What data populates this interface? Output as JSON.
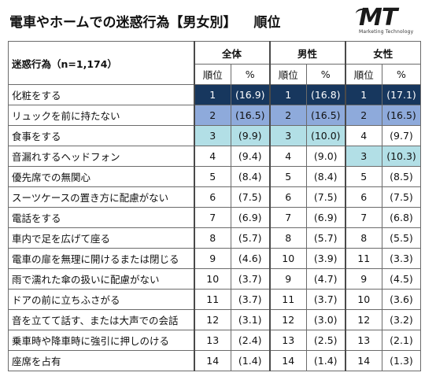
{
  "title": {
    "main": "電車やホームでの迷惑行為【男女別】",
    "rank": "順位"
  },
  "logo": {
    "text": "MT",
    "subtitle": "Marketing Technology"
  },
  "colors": {
    "rank1": "#17375e",
    "rank2": "#8eaadb",
    "rank3": "#b2dfe6",
    "border": "#6b6b6b"
  },
  "table": {
    "corner": "迷惑行為（n=1,174）",
    "groups": [
      "全体",
      "男性",
      "女性"
    ],
    "sub_rank": "順位",
    "sub_pct": "%",
    "rows": [
      {
        "label": "化粧をする",
        "total": [
          "1",
          "(16.9)"
        ],
        "male": [
          "1",
          "(16.8)"
        ],
        "female": [
          "1",
          "(17.1)"
        ]
      },
      {
        "label": "リュックを前に持たない",
        "total": [
          "2",
          "(16.5)"
        ],
        "male": [
          "2",
          "(16.5)"
        ],
        "female": [
          "2",
          "(16.5)"
        ]
      },
      {
        "label": "食事をする",
        "total": [
          "3",
          "(9.9)"
        ],
        "male": [
          "3",
          "(10.0)"
        ],
        "female": [
          "4",
          "(9.7)"
        ]
      },
      {
        "label": "音漏れするヘッドフォン",
        "total": [
          "4",
          "(9.4)"
        ],
        "male": [
          "4",
          "(9.0)"
        ],
        "female": [
          "3",
          "(10.3)"
        ]
      },
      {
        "label": "優先席での無関心",
        "total": [
          "5",
          "(8.4)"
        ],
        "male": [
          "5",
          "(8.4)"
        ],
        "female": [
          "5",
          "(8.5)"
        ]
      },
      {
        "label": "スーツケースの置き方に配慮がない",
        "total": [
          "6",
          "(7.5)"
        ],
        "male": [
          "6",
          "(7.5)"
        ],
        "female": [
          "6",
          "(7.5)"
        ]
      },
      {
        "label": "電話をする",
        "total": [
          "7",
          "(6.9)"
        ],
        "male": [
          "7",
          "(6.9)"
        ],
        "female": [
          "7",
          "(6.8)"
        ]
      },
      {
        "label": "車内で足を広げて座る",
        "total": [
          "8",
          "(5.7)"
        ],
        "male": [
          "8",
          "(5.7)"
        ],
        "female": [
          "8",
          "(5.5)"
        ]
      },
      {
        "label": "電車の扉を無理に開けるまたは閉じる",
        "total": [
          "9",
          "(4.6)"
        ],
        "male": [
          "10",
          "(3.9)"
        ],
        "female": [
          "11",
          "(3.3)"
        ]
      },
      {
        "label": "雨で濡れた傘の扱いに配慮がない",
        "total": [
          "10",
          "(3.7)"
        ],
        "male": [
          "9",
          "(4.7)"
        ],
        "female": [
          "9",
          "(4.5)"
        ]
      },
      {
        "label": "ドアの前に立ちふさがる",
        "total": [
          "11",
          "(3.7)"
        ],
        "male": [
          "11",
          "(3.7)"
        ],
        "female": [
          "10",
          "(3.6)"
        ]
      },
      {
        "label": "音を立てて話す、または大声での会話",
        "total": [
          "12",
          "(3.1)"
        ],
        "male": [
          "12",
          "(3.0)"
        ],
        "female": [
          "12",
          "(3.2)"
        ]
      },
      {
        "label": "乗車時や降車時に強引に押しのける",
        "total": [
          "13",
          "(2.4)"
        ],
        "male": [
          "13",
          "(2.5)"
        ],
        "female": [
          "13",
          "(2.1)"
        ]
      },
      {
        "label": "座席を占有",
        "total": [
          "14",
          "(1.4)"
        ],
        "male": [
          "14",
          "(1.4)"
        ],
        "female": [
          "14",
          "(1.3)"
        ]
      }
    ]
  }
}
